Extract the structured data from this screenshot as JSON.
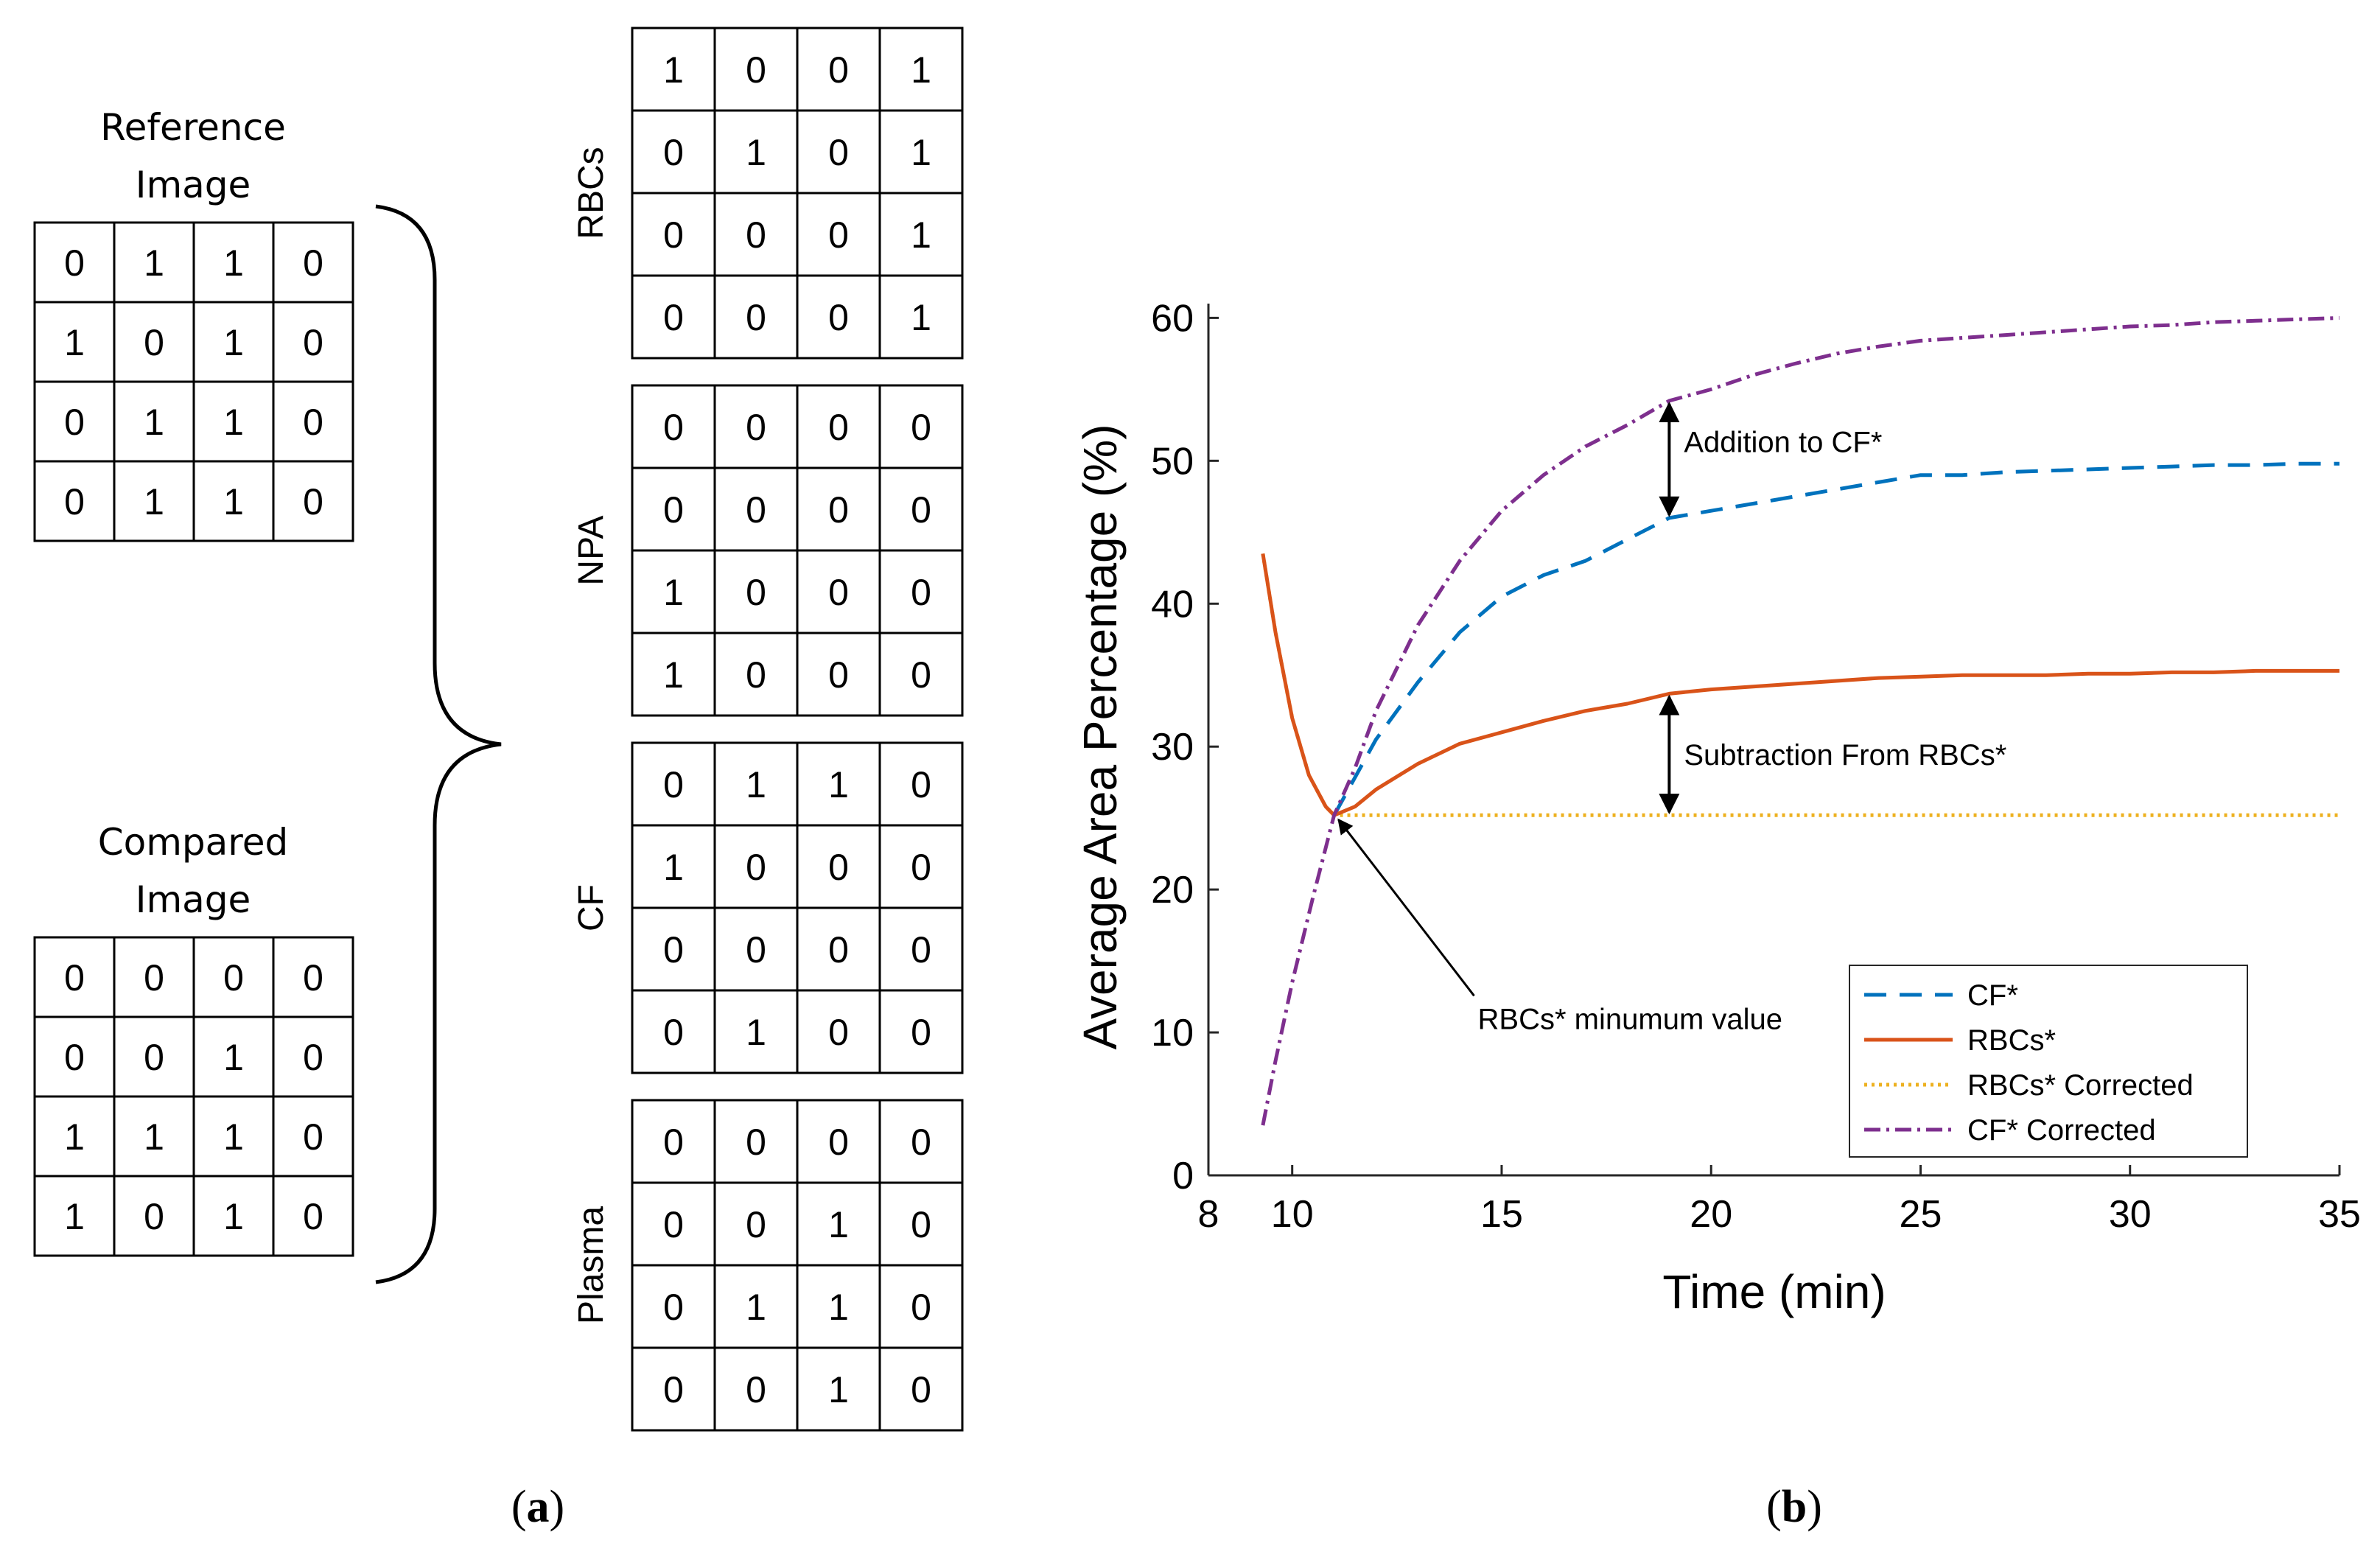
{
  "panel_a": {
    "reference": {
      "title_line1": "Reference",
      "title_line2": "Image",
      "grid": [
        [
          0,
          1,
          1,
          0
        ],
        [
          1,
          0,
          1,
          0
        ],
        [
          0,
          1,
          1,
          0
        ],
        [
          0,
          1,
          1,
          0
        ]
      ]
    },
    "compared": {
      "title_line1": "Compared",
      "title_line2": "Image",
      "grid": [
        [
          0,
          0,
          0,
          0
        ],
        [
          0,
          0,
          1,
          0
        ],
        [
          1,
          1,
          1,
          0
        ],
        [
          1,
          0,
          1,
          0
        ]
      ]
    },
    "results": [
      {
        "label": "RBCs",
        "grid": [
          [
            1,
            0,
            0,
            1
          ],
          [
            0,
            1,
            0,
            1
          ],
          [
            0,
            0,
            0,
            1
          ],
          [
            0,
            0,
            0,
            1
          ]
        ]
      },
      {
        "label": "NPA",
        "grid": [
          [
            0,
            0,
            0,
            0
          ],
          [
            0,
            0,
            0,
            0
          ],
          [
            1,
            0,
            0,
            0
          ],
          [
            1,
            0,
            0,
            0
          ]
        ]
      },
      {
        "label": "CF",
        "grid": [
          [
            0,
            1,
            1,
            0
          ],
          [
            1,
            0,
            0,
            0
          ],
          [
            0,
            0,
            0,
            0
          ],
          [
            0,
            1,
            0,
            0
          ]
        ]
      },
      {
        "label": "Plasma",
        "grid": [
          [
            0,
            0,
            0,
            0
          ],
          [
            0,
            0,
            1,
            0
          ],
          [
            0,
            1,
            1,
            0
          ],
          [
            0,
            0,
            1,
            0
          ]
        ]
      }
    ],
    "caption_open": "(",
    "caption_letter": "a",
    "caption_close": ")"
  },
  "panel_b": {
    "caption_open": "(",
    "caption_letter": "b",
    "caption_close": ")"
  },
  "chart_data": {
    "type": "line",
    "xlabel": "Time (min)",
    "ylabel": "Average Area Percentage (%)",
    "xlim": [
      8,
      35
    ],
    "ylim": [
      0,
      61
    ],
    "xticks": [
      8,
      10,
      15,
      20,
      25,
      30,
      35
    ],
    "yticks": [
      0,
      10,
      20,
      30,
      40,
      50,
      60
    ],
    "grid": false,
    "legend_position": "bottom-right",
    "series": [
      {
        "name": "CF*",
        "color": "#0072BD",
        "dash": "30 18",
        "x": [
          11,
          12,
          13,
          14,
          15,
          16,
          17,
          18,
          19,
          20,
          21,
          22,
          23,
          24,
          25,
          26,
          27,
          28,
          29,
          30,
          31,
          32,
          33,
          34,
          35
        ],
        "y": [
          25.2,
          30.5,
          34.5,
          38,
          40.5,
          42,
          43,
          44.5,
          46,
          46.5,
          47,
          47.5,
          48,
          48.5,
          49,
          49,
          49.2,
          49.3,
          49.4,
          49.5,
          49.6,
          49.7,
          49.7,
          49.8,
          49.8
        ]
      },
      {
        "name": "RBCs*",
        "color": "#D95319",
        "dash": "",
        "x": [
          9.3,
          9.6,
          10,
          10.4,
          10.8,
          11,
          11.5,
          12,
          13,
          14,
          15,
          16,
          17,
          18,
          19,
          20,
          21,
          22,
          23,
          24,
          25,
          26,
          27,
          28,
          29,
          30,
          31,
          32,
          33,
          34,
          35
        ],
        "y": [
          43.5,
          38,
          32,
          28,
          25.8,
          25.2,
          25.8,
          27,
          28.8,
          30.2,
          31,
          31.8,
          32.5,
          33,
          33.7,
          34,
          34.2,
          34.4,
          34.6,
          34.8,
          34.9,
          35,
          35,
          35,
          35.1,
          35.1,
          35.2,
          35.2,
          35.3,
          35.3,
          35.3
        ]
      },
      {
        "name": "RBCs* Corrected",
        "color": "#EDB120",
        "dash": "4 6",
        "x": [
          9.3,
          9.6,
          10,
          10.4,
          10.8,
          11,
          35
        ],
        "y": [
          43.5,
          38,
          32,
          28,
          25.8,
          25.2,
          25.2
        ]
      },
      {
        "name": "CF* Corrected",
        "color": "#7E2F8E",
        "dash": "22 8 4 8",
        "x": [
          9.3,
          9.6,
          10,
          10.5,
          11,
          11.5,
          12,
          13,
          14,
          15,
          16,
          17,
          18,
          19,
          20,
          21,
          22,
          23,
          24,
          25,
          26,
          27,
          28,
          29,
          30,
          31,
          32,
          33,
          34,
          35
        ],
        "y": [
          3.5,
          8,
          13.5,
          19.5,
          25.2,
          28.5,
          32.5,
          38.5,
          43,
          46.5,
          49,
          51,
          52.5,
          54.2,
          55,
          56,
          56.8,
          57.5,
          58,
          58.4,
          58.6,
          58.8,
          59,
          59.2,
          59.4,
          59.5,
          59.7,
          59.8,
          59.9,
          60
        ]
      }
    ],
    "annotations": [
      {
        "text": "Addition to CF*",
        "x": 19,
        "y_from": 54.2,
        "y_to": 46
      },
      {
        "text": "Subtraction From RBCs*",
        "x": 19,
        "y_from": 33.7,
        "y_to": 25.2
      },
      {
        "text": "RBCs* minumum value",
        "x": 11,
        "y": 25.2
      }
    ]
  }
}
